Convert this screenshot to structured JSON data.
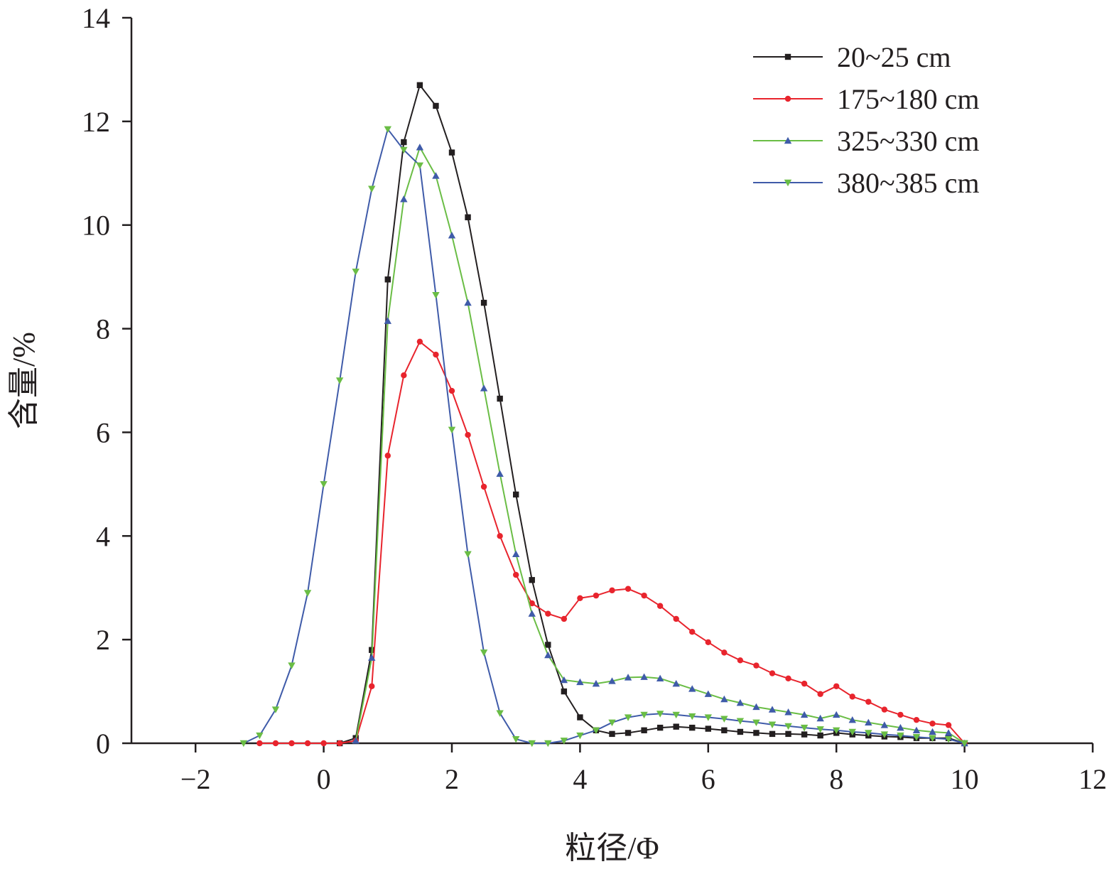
{
  "chart_data": {
    "type": "line",
    "title": "",
    "xlabel": "粒径/Φ",
    "ylabel": "含量/%",
    "xlim": [
      -3,
      12
    ],
    "ylim": [
      0,
      14
    ],
    "xticks": [
      -2,
      0,
      2,
      4,
      6,
      8,
      10,
      12
    ],
    "yticks": [
      0,
      2,
      4,
      6,
      8,
      10,
      12,
      14
    ],
    "xtick_labels": [
      "−2",
      "0",
      "2",
      "4",
      "6",
      "8",
      "10",
      "12"
    ],
    "ytick_labels": [
      "0",
      "2",
      "4",
      "6",
      "8",
      "10",
      "12",
      "14"
    ],
    "grid": false,
    "legend_position": "top-right",
    "series": [
      {
        "name": "20~25 cm",
        "color": "#231f20",
        "marker": "square",
        "x": [
          0.25,
          0.5,
          0.75,
          1.0,
          1.25,
          1.5,
          1.75,
          2.0,
          2.25,
          2.5,
          2.75,
          3.0,
          3.25,
          3.5,
          3.75,
          4.0,
          4.25,
          4.5,
          4.75,
          5.0,
          5.25,
          5.5,
          5.75,
          6.0,
          6.25,
          6.5,
          6.75,
          7.0,
          7.25,
          7.5,
          7.75,
          8.0,
          8.25,
          8.5,
          8.75,
          9.0,
          9.25,
          9.5,
          9.75,
          10.0
        ],
        "y": [
          0.0,
          0.1,
          1.8,
          8.95,
          11.6,
          12.7,
          12.3,
          11.4,
          10.15,
          8.5,
          6.65,
          4.8,
          3.15,
          1.9,
          1.0,
          0.5,
          0.25,
          0.18,
          0.2,
          0.25,
          0.3,
          0.32,
          0.3,
          0.28,
          0.25,
          0.22,
          0.2,
          0.18,
          0.18,
          0.17,
          0.15,
          0.2,
          0.17,
          0.15,
          0.13,
          0.12,
          0.1,
          0.1,
          0.1,
          0.0
        ]
      },
      {
        "name": "175~180 cm",
        "color": "#e8242d",
        "marker": "circle",
        "x": [
          -1.0,
          -0.75,
          -0.5,
          -0.25,
          0.0,
          0.25,
          0.5,
          0.75,
          1.0,
          1.25,
          1.5,
          1.75,
          2.0,
          2.25,
          2.5,
          2.75,
          3.0,
          3.25,
          3.5,
          3.75,
          4.0,
          4.25,
          4.5,
          4.75,
          5.0,
          5.25,
          5.5,
          5.75,
          6.0,
          6.25,
          6.5,
          6.75,
          7.0,
          7.25,
          7.5,
          7.75,
          8.0,
          8.25,
          8.5,
          8.75,
          9.0,
          9.25,
          9.5,
          9.75,
          10.0
        ],
        "y": [
          0.0,
          0.0,
          0.0,
          0.0,
          0.0,
          0.0,
          0.05,
          1.1,
          5.55,
          7.1,
          7.75,
          7.5,
          6.8,
          5.95,
          4.95,
          4.0,
          3.25,
          2.7,
          2.5,
          2.4,
          2.8,
          2.85,
          2.95,
          2.98,
          2.85,
          2.65,
          2.4,
          2.15,
          1.95,
          1.75,
          1.6,
          1.5,
          1.35,
          1.25,
          1.15,
          0.95,
          1.1,
          0.9,
          0.8,
          0.65,
          0.55,
          0.45,
          0.38,
          0.35,
          0.0
        ]
      },
      {
        "name": "325~330 cm",
        "color": "#6abd45",
        "marker": "triangle-up",
        "x": [
          0.5,
          0.75,
          1.0,
          1.25,
          1.5,
          1.75,
          2.0,
          2.25,
          2.5,
          2.75,
          3.0,
          3.25,
          3.5,
          3.75,
          4.0,
          4.25,
          4.5,
          4.75,
          5.0,
          5.25,
          5.5,
          5.75,
          6.0,
          6.25,
          6.5,
          6.75,
          7.0,
          7.25,
          7.5,
          7.75,
          8.0,
          8.25,
          8.5,
          8.75,
          9.0,
          9.25,
          9.5,
          9.75,
          10.0
        ],
        "y": [
          0.05,
          1.65,
          8.15,
          10.5,
          11.5,
          10.95,
          9.8,
          8.5,
          6.85,
          5.2,
          3.65,
          2.5,
          1.7,
          1.22,
          1.18,
          1.15,
          1.2,
          1.27,
          1.28,
          1.25,
          1.15,
          1.05,
          0.95,
          0.85,
          0.78,
          0.7,
          0.65,
          0.6,
          0.55,
          0.48,
          0.55,
          0.45,
          0.4,
          0.35,
          0.3,
          0.25,
          0.22,
          0.2,
          0.0
        ]
      },
      {
        "name": "380~385 cm",
        "color": "#3f5ba9",
        "marker": "triangle-down",
        "x": [
          -1.25,
          -1.0,
          -0.75,
          -0.5,
          -0.25,
          0.0,
          0.25,
          0.5,
          0.75,
          1.0,
          1.25,
          1.5,
          1.75,
          2.0,
          2.25,
          2.5,
          2.75,
          3.0,
          3.25,
          3.5,
          3.75,
          4.0,
          4.25,
          4.5,
          4.75,
          5.0,
          5.25,
          5.5,
          5.75,
          6.0,
          6.25,
          6.5,
          6.75,
          7.0,
          7.25,
          7.5,
          7.75,
          8.0,
          8.25,
          8.5,
          8.75,
          9.0,
          9.25,
          9.5,
          9.75,
          10.0
        ],
        "y": [
          0.0,
          0.15,
          0.65,
          1.5,
          2.9,
          5.0,
          7.0,
          9.1,
          10.7,
          11.85,
          11.45,
          11.15,
          8.65,
          6.05,
          3.65,
          1.75,
          0.58,
          0.08,
          0.0,
          0.0,
          0.05,
          0.15,
          0.25,
          0.4,
          0.5,
          0.55,
          0.57,
          0.55,
          0.52,
          0.5,
          0.47,
          0.43,
          0.4,
          0.36,
          0.33,
          0.3,
          0.27,
          0.25,
          0.22,
          0.2,
          0.17,
          0.15,
          0.12,
          0.1,
          0.08,
          0.0
        ]
      }
    ]
  }
}
